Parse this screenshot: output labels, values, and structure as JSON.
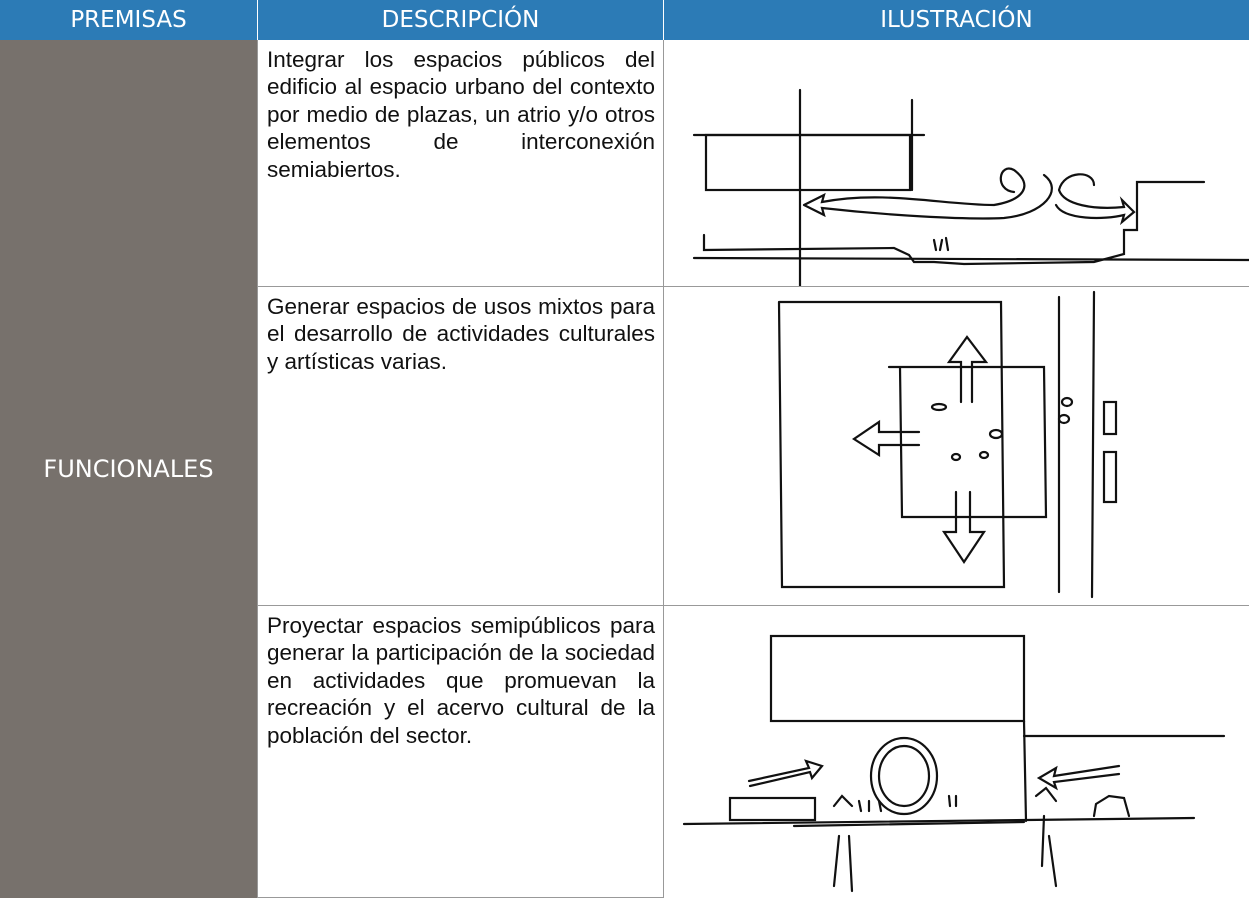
{
  "table": {
    "header": [
      "PREMISAS",
      "DESCRIPCIÓN",
      "ILUSTRACIÓN"
    ],
    "category": "FUNCIONALES",
    "rows": [
      "Integrar los espacios públicos del edificio al espacio urbano del contexto por medio de plazas, un atrio y/o otros elementos de interconexión semiabiertos.",
      "Generar espacios de usos mixtos para el desarrollo de actividades culturales y artísticas varias.",
      "Proyectar espacios semipúblicos para generar la participación de la sociedad en actividades que promuevan la recreación y el acervo cultural de la población del sector."
    ]
  }
}
